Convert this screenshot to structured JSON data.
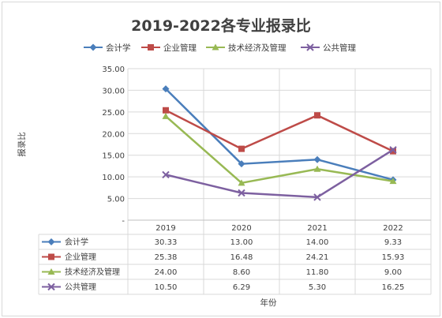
{
  "chart_data": {
    "type": "line",
    "title": "2019-2022各专业报录比",
    "xlabel": "年份",
    "ylabel": "报录比",
    "categories": [
      "2019",
      "2020",
      "2021",
      "2022"
    ],
    "ylim": [
      0,
      35
    ],
    "yticks": [
      "-",
      "5.00",
      "10.00",
      "15.00",
      "20.00",
      "25.00",
      "30.00",
      "35.00"
    ],
    "grid": true,
    "legend_position": "top",
    "data_table": true,
    "series": [
      {
        "name": "会计学",
        "values": [
          30.33,
          13.0,
          14.0,
          9.33
        ],
        "value_labels": [
          "30.33",
          "13.00",
          "14.00",
          "9.33"
        ],
        "color": "#4a7ebb",
        "marker": "diamond"
      },
      {
        "name": "企业管理",
        "values": [
          25.38,
          16.48,
          24.21,
          15.93
        ],
        "value_labels": [
          "25.38",
          "16.48",
          "24.21",
          "15.93"
        ],
        "color": "#be4b48",
        "marker": "square"
      },
      {
        "name": "技术经济及管理",
        "values": [
          24.0,
          8.6,
          11.8,
          9.0
        ],
        "value_labels": [
          "24.00",
          "8.60",
          "11.80",
          "9.00"
        ],
        "color": "#98b954",
        "marker": "triangle"
      },
      {
        "name": "公共管理",
        "values": [
          10.5,
          6.29,
          5.3,
          16.25
        ],
        "value_labels": [
          "10.50",
          "6.29",
          "5.30",
          "16.25"
        ],
        "color": "#7d60a0",
        "marker": "x"
      }
    ]
  }
}
